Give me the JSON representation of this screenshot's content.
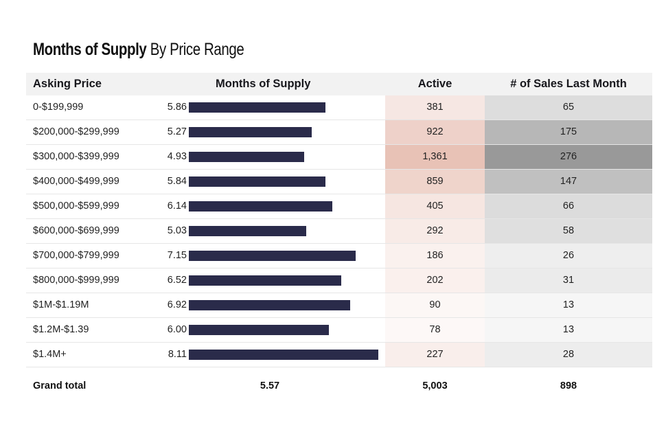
{
  "title": {
    "bold": "Months of Supply",
    "light": "By Price Range"
  },
  "headers": {
    "asking_price": "Asking Price",
    "months_of_supply": "Months of Supply",
    "active": "Active",
    "sales": "# of Sales Last Month"
  },
  "colors": {
    "bar": "#2a2b4a",
    "header_bg": "#f2f2f2",
    "active_heat_max": "#e8c2b6",
    "active_heat_min": "#fdf8f7",
    "sales_heat_max": "#999999",
    "sales_heat_min": "#f6f6f6"
  },
  "rows": [
    {
      "price": "0-$199,999",
      "mos": "5.86",
      "active": "381",
      "sales": "65"
    },
    {
      "price": "$200,000-$299,999",
      "mos": "5.27",
      "active": "922",
      "sales": "175"
    },
    {
      "price": "$300,000-$399,999",
      "mos": "4.93",
      "active": "1,361",
      "sales": "276"
    },
    {
      "price": "$400,000-$499,999",
      "mos": "5.84",
      "active": "859",
      "sales": "147"
    },
    {
      "price": "$500,000-$599,999",
      "mos": "6.14",
      "active": "405",
      "sales": "66"
    },
    {
      "price": "$600,000-$699,999",
      "mos": "5.03",
      "active": "292",
      "sales": "58"
    },
    {
      "price": "$700,000-$799,999",
      "mos": "7.15",
      "active": "186",
      "sales": "26"
    },
    {
      "price": "$800,000-$999,999",
      "mos": "6.52",
      "active": "202",
      "sales": "31"
    },
    {
      "price": "$1M-$1.19M",
      "mos": "6.92",
      "active": "90",
      "sales": "13"
    },
    {
      "price": "$1.2M-$1.39",
      "mos": "6.00",
      "active": "78",
      "sales": "13"
    },
    {
      "price": "$1.4M+",
      "mos": "8.11",
      "active": "227",
      "sales": "28"
    }
  ],
  "total": {
    "label": "Grand total",
    "mos": "5.57",
    "active": "5,003",
    "sales": "898"
  },
  "chart_data": {
    "type": "table",
    "title": "Months of Supply By Price Range",
    "columns": [
      "Asking Price",
      "Months of Supply",
      "Active",
      "# of Sales Last Month"
    ],
    "categories": [
      "0-$199,999",
      "$200,000-$299,999",
      "$300,000-$399,999",
      "$400,000-$499,999",
      "$500,000-$599,999",
      "$600,000-$699,999",
      "$700,000-$799,999",
      "$800,000-$999,999",
      "$1M-$1.19M",
      "$1.2M-$1.39",
      "$1.4M+"
    ],
    "series": [
      {
        "name": "Months of Supply",
        "values": [
          5.86,
          5.27,
          4.93,
          5.84,
          6.14,
          5.03,
          7.15,
          6.52,
          6.92,
          6.0,
          8.11
        ],
        "display": "bar"
      },
      {
        "name": "Active",
        "values": [
          381,
          922,
          1361,
          859,
          405,
          292,
          186,
          202,
          90,
          78,
          227
        ],
        "display": "heatmap"
      },
      {
        "name": "# of Sales Last Month",
        "values": [
          65,
          175,
          276,
          147,
          66,
          58,
          26,
          31,
          13,
          13,
          28
        ],
        "display": "heatmap"
      }
    ],
    "bar_range": [
      0,
      8.11
    ],
    "totals": {
      "Months of Supply": 5.57,
      "Active": 5003,
      "# of Sales Last Month": 898
    }
  }
}
